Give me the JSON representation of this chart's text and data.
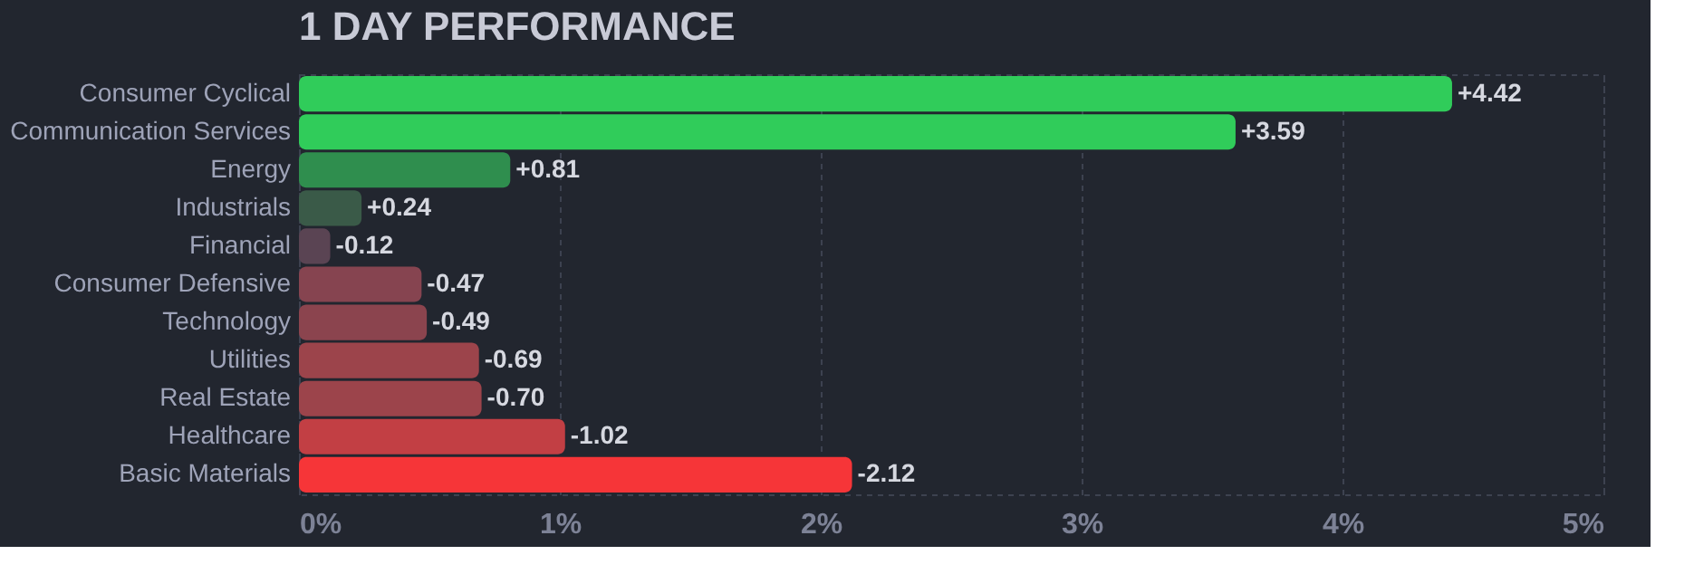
{
  "chart_data": {
    "type": "bar",
    "orientation": "horizontal",
    "title": "1 DAY PERFORMANCE",
    "categories": [
      "Consumer Cyclical",
      "Communication Services",
      "Energy",
      "Industrials",
      "Financial",
      "Consumer Defensive",
      "Technology",
      "Utilities",
      "Real Estate",
      "Healthcare",
      "Basic Materials"
    ],
    "values": [
      4.42,
      3.59,
      0.81,
      0.24,
      -0.12,
      -0.47,
      -0.49,
      -0.69,
      -0.7,
      -1.02,
      -2.12
    ],
    "base": [
      0,
      0,
      0,
      0,
      0.12,
      0.47,
      0.49,
      0.69,
      0.7,
      1.02,
      2.12
    ],
    "value_labels": [
      "+4.42",
      "+3.59",
      "+0.81",
      "+0.24",
      "-0.12",
      "-0.47",
      "-0.49",
      "-0.69",
      "-0.70",
      "-1.02",
      "-2.12"
    ],
    "colors": [
      "#30cc5a",
      "#30cc5a",
      "#2f8e4e",
      "#3a5a48",
      "#5a4453",
      "#864450",
      "#8b444e",
      "#9c444b",
      "#9c444b",
      "#c23f44",
      "#f63538"
    ],
    "xlim": [
      0,
      5
    ],
    "xticks": [
      {
        "value": 0,
        "label": "0%"
      },
      {
        "value": 1,
        "label": "1%"
      },
      {
        "value": 2,
        "label": "2%"
      },
      {
        "value": 3,
        "label": "3%"
      },
      {
        "value": 4,
        "label": "4%"
      },
      {
        "value": 5,
        "label": "5%"
      }
    ],
    "grid": "x",
    "legend": false
  }
}
